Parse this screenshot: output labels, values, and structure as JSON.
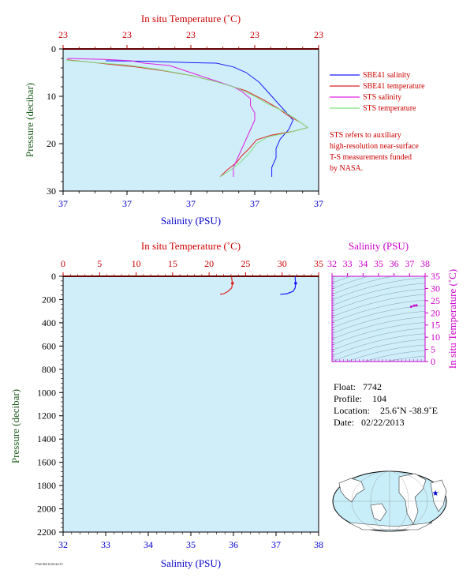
{
  "colors": {
    "plot_bg": "#d0eefa",
    "salinity": "#1a1aff",
    "temperature": "#e02020",
    "sts_salinity": "#e020e0",
    "sts_temperature": "#80e080",
    "axis_red": "#cc0000",
    "axis_blue": "#0000cc",
    "axis_green": "#1a5a1a",
    "axis_magenta": "#cc00cc"
  },
  "chart_data": [
    {
      "id": "near-surface",
      "type": "line",
      "top_axis_label": "In situ Temperature (˚C)",
      "top_ticks": [
        "23",
        "23",
        "23",
        "23",
        "23"
      ],
      "bottom_axis_label": "Salinity (PSU)",
      "bottom_ticks": [
        "37",
        "37",
        "37",
        "37",
        "37"
      ],
      "left_axis_label": "Pressure (decibar)",
      "left_ticks": [
        "0",
        "10",
        "20",
        "30"
      ],
      "ylim": [
        0,
        30
      ],
      "salinity_xlim": [
        37.0,
        37.6
      ],
      "temperature_xlim": [
        22.5,
        23.9
      ],
      "series": [
        {
          "name": "SBE41 salinity",
          "color_key": "salinity",
          "kind": "salinity",
          "points": [
            [
              37.1,
              2.5
            ],
            [
              37.2,
              2.6
            ],
            [
              37.3,
              2.9
            ],
            [
              37.36,
              3.0
            ],
            [
              37.4,
              3.8
            ],
            [
              37.43,
              5
            ],
            [
              37.46,
              7
            ],
            [
              37.48,
              9
            ],
            [
              37.5,
              11
            ],
            [
              37.52,
              13
            ],
            [
              37.53,
              14
            ],
            [
              37.54,
              15
            ],
            [
              37.53,
              17
            ],
            [
              37.51,
              19
            ],
            [
              37.5,
              21
            ],
            [
              37.5,
              23
            ],
            [
              37.49,
              25
            ],
            [
              37.49,
              27
            ]
          ]
        },
        {
          "name": "SBE41 temperature",
          "color_key": "temperature",
          "kind": "temperature",
          "points": [
            [
              22.52,
              2.3
            ],
            [
              22.6,
              2.6
            ],
            [
              22.75,
              3.2
            ],
            [
              22.9,
              3.8
            ],
            [
              23.05,
              4.6
            ],
            [
              23.2,
              5.6
            ],
            [
              23.35,
              7.0
            ],
            [
              23.5,
              8.8
            ],
            [
              23.6,
              10.8
            ],
            [
              23.68,
              12.6
            ],
            [
              23.73,
              14.0
            ],
            [
              23.8,
              15.5
            ],
            [
              23.84,
              16.6
            ],
            [
              23.76,
              17.4
            ],
            [
              23.64,
              18.2
            ],
            [
              23.56,
              19.2
            ],
            [
              23.52,
              21
            ],
            [
              23.48,
              22.5
            ],
            [
              23.45,
              24
            ],
            [
              23.4,
              25.5
            ],
            [
              23.36,
              27
            ]
          ]
        },
        {
          "name": "STS salinity",
          "color_key": "sts_salinity",
          "kind": "salinity",
          "points": [
            [
              37.01,
              2.0
            ],
            [
              37.05,
              2.1
            ],
            [
              37.1,
              2.2
            ],
            [
              37.16,
              2.5
            ],
            [
              37.19,
              3.0
            ],
            [
              37.25,
              3.5
            ],
            [
              37.3,
              5.0
            ],
            [
              37.35,
              6.5
            ],
            [
              37.4,
              8.0
            ],
            [
              37.42,
              9.0
            ],
            [
              37.44,
              10.5
            ],
            [
              37.44,
              12
            ],
            [
              37.45,
              13.5
            ],
            [
              37.45,
              15
            ],
            [
              37.44,
              17
            ],
            [
              37.43,
              19
            ],
            [
              37.42,
              21
            ],
            [
              37.41,
              23
            ],
            [
              37.4,
              25
            ],
            [
              37.4,
              27
            ]
          ]
        },
        {
          "name": "STS temperature",
          "color_key": "sts_temperature",
          "kind": "temperature",
          "points": [
            [
              22.52,
              2.4
            ],
            [
              22.65,
              2.8
            ],
            [
              22.85,
              3.4
            ],
            [
              23.0,
              4.2
            ],
            [
              23.15,
              5.2
            ],
            [
              23.3,
              6.5
            ],
            [
              23.45,
              8.2
            ],
            [
              23.55,
              10.0
            ],
            [
              23.62,
              11.6
            ],
            [
              23.7,
              13.0
            ],
            [
              23.76,
              14.4
            ],
            [
              23.84,
              16.6
            ],
            [
              23.74,
              17.6
            ],
            [
              23.62,
              18.6
            ],
            [
              23.56,
              20
            ],
            [
              23.52,
              22
            ],
            [
              23.47,
              24
            ],
            [
              23.42,
              25.5
            ],
            [
              23.36,
              27
            ]
          ]
        }
      ]
    },
    {
      "id": "full-profile",
      "type": "line",
      "top_axis_label": "In situ Temperature (˚C)",
      "top_ticks": [
        "0",
        "5",
        "10",
        "15",
        "20",
        "25",
        "30",
        "35"
      ],
      "xlim_temperature": [
        0,
        35
      ],
      "bottom_axis_label": "Salinity (PSU)",
      "bottom_ticks": [
        "32",
        "33",
        "34",
        "35",
        "36",
        "37",
        "38"
      ],
      "xlim_salinity": [
        32,
        38
      ],
      "left_axis_label": "Pressure (decibar)",
      "left_ticks": [
        "0",
        "200",
        "400",
        "600",
        "800",
        "1000",
        "1200",
        "1400",
        "1600",
        "1800",
        "2000",
        "2200"
      ],
      "ylim": [
        0,
        2200
      ],
      "series": [
        {
          "kind": "temperature",
          "color_key": "temperature",
          "points": [
            [
              23.1,
              0
            ],
            [
              23.1,
              20
            ],
            [
              23.2,
              60
            ],
            [
              23.1,
              100
            ],
            [
              22.6,
              130
            ],
            [
              22.0,
              150
            ],
            [
              21.5,
              155
            ]
          ]
        },
        {
          "kind": "salinity",
          "color_key": "salinity",
          "points": [
            [
              37.45,
              0
            ],
            [
              37.45,
              20
            ],
            [
              37.46,
              60
            ],
            [
              37.45,
              100
            ],
            [
              37.4,
              130
            ],
            [
              37.25,
              150
            ],
            [
              37.1,
              155
            ]
          ]
        }
      ]
    },
    {
      "id": "ts-diagram",
      "type": "scatter",
      "top_axis_label": "Salinity (PSU)",
      "top_ticks": [
        "32",
        "33",
        "34",
        "35",
        "36",
        "37",
        "38"
      ],
      "xlim": [
        32,
        38
      ],
      "right_axis_label": "In situ Temperature (˚C)",
      "right_ticks": [
        "0",
        "5",
        "10",
        "15",
        "20",
        "25",
        "30",
        "35"
      ],
      "ylim": [
        0,
        35
      ],
      "points": [
        [
          37.1,
          22.5
        ],
        [
          37.3,
          23.0
        ],
        [
          37.45,
          23.1
        ]
      ]
    }
  ],
  "legend": {
    "items": [
      {
        "label": "SBE41 salinity",
        "color_key": "salinity"
      },
      {
        "label": "SBE41 temperature",
        "color_key": "temperature"
      },
      {
        "label": "STS salinity",
        "color_key": "sts_salinity"
      },
      {
        "label": "STS temperature",
        "color_key": "sts_temperature"
      }
    ],
    "note_lines": [
      "STS refers to auxiliary",
      "high-resolution near-surface",
      "T-S measurements funded",
      "by NASA."
    ]
  },
  "info": {
    "float_label": "Float:",
    "float_value": "7742",
    "profile_label": "Profile:",
    "profile_value": "104",
    "location_label": "Location:",
    "location_value": "25.6˚N  -38.9˚E",
    "date_label": "Date:",
    "date_value": "02/22/2013"
  },
  "footer": {
    "code": "7742/104/14 02/22/13"
  },
  "map": {
    "marker_icon": "star-marker-icon",
    "lat": 25.6,
    "lon": -38.9
  }
}
